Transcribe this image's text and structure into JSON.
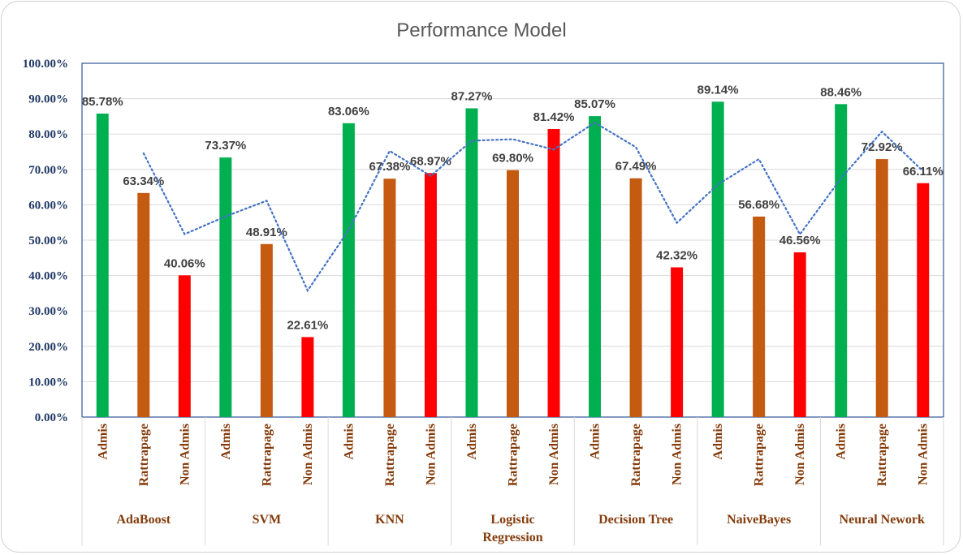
{
  "chart_data": {
    "type": "bar",
    "title": "Performance Model",
    "ylim": [
      0,
      100
    ],
    "yticks": [
      "0.00%",
      "10.00%",
      "20.00%",
      "30.00%",
      "40.00%",
      "50.00%",
      "60.00%",
      "70.00%",
      "80.00%",
      "90.00%",
      "100.00%"
    ],
    "subcategories": [
      "Admis",
      "Rattrapage",
      "Non Admis"
    ],
    "groups": [
      {
        "name": [
          "AdaBoost"
        ],
        "values": [
          85.78,
          63.34,
          40.06
        ],
        "labels": [
          "85.78%",
          "63.34%",
          "40.06%"
        ]
      },
      {
        "name": [
          "SVM"
        ],
        "values": [
          73.37,
          48.91,
          22.61
        ],
        "labels": [
          "73.37%",
          "48.91%",
          "22.61%"
        ]
      },
      {
        "name": [
          "KNN"
        ],
        "values": [
          83.06,
          67.38,
          68.97
        ],
        "labels": [
          "83.06%",
          "67.38%",
          "68.97%"
        ]
      },
      {
        "name": [
          "Logistic",
          "Regression"
        ],
        "values": [
          87.27,
          69.8,
          81.42
        ],
        "labels": [
          "87.27%",
          "69.80%",
          "81.42%"
        ]
      },
      {
        "name": [
          "Decision Tree"
        ],
        "values": [
          85.07,
          67.49,
          42.32
        ],
        "labels": [
          "85.07%",
          "67.49%",
          "42.32%"
        ]
      },
      {
        "name": [
          "NaiveBayes"
        ],
        "values": [
          89.14,
          56.68,
          46.56
        ],
        "labels": [
          "89.14%",
          "56.68%",
          "46.56%"
        ]
      },
      {
        "name": [
          "Neural Nework"
        ],
        "values": [
          88.46,
          72.92,
          66.11
        ],
        "labels": [
          "88.46%",
          "72.92%",
          "66.11%"
        ]
      }
    ],
    "colors": [
      "#00b050",
      "#c55a11",
      "#ff0000"
    ],
    "trendline": {
      "style": "dotted",
      "color": "#4472c4",
      "type": "moving-average"
    },
    "grid": true,
    "legend": "none"
  }
}
